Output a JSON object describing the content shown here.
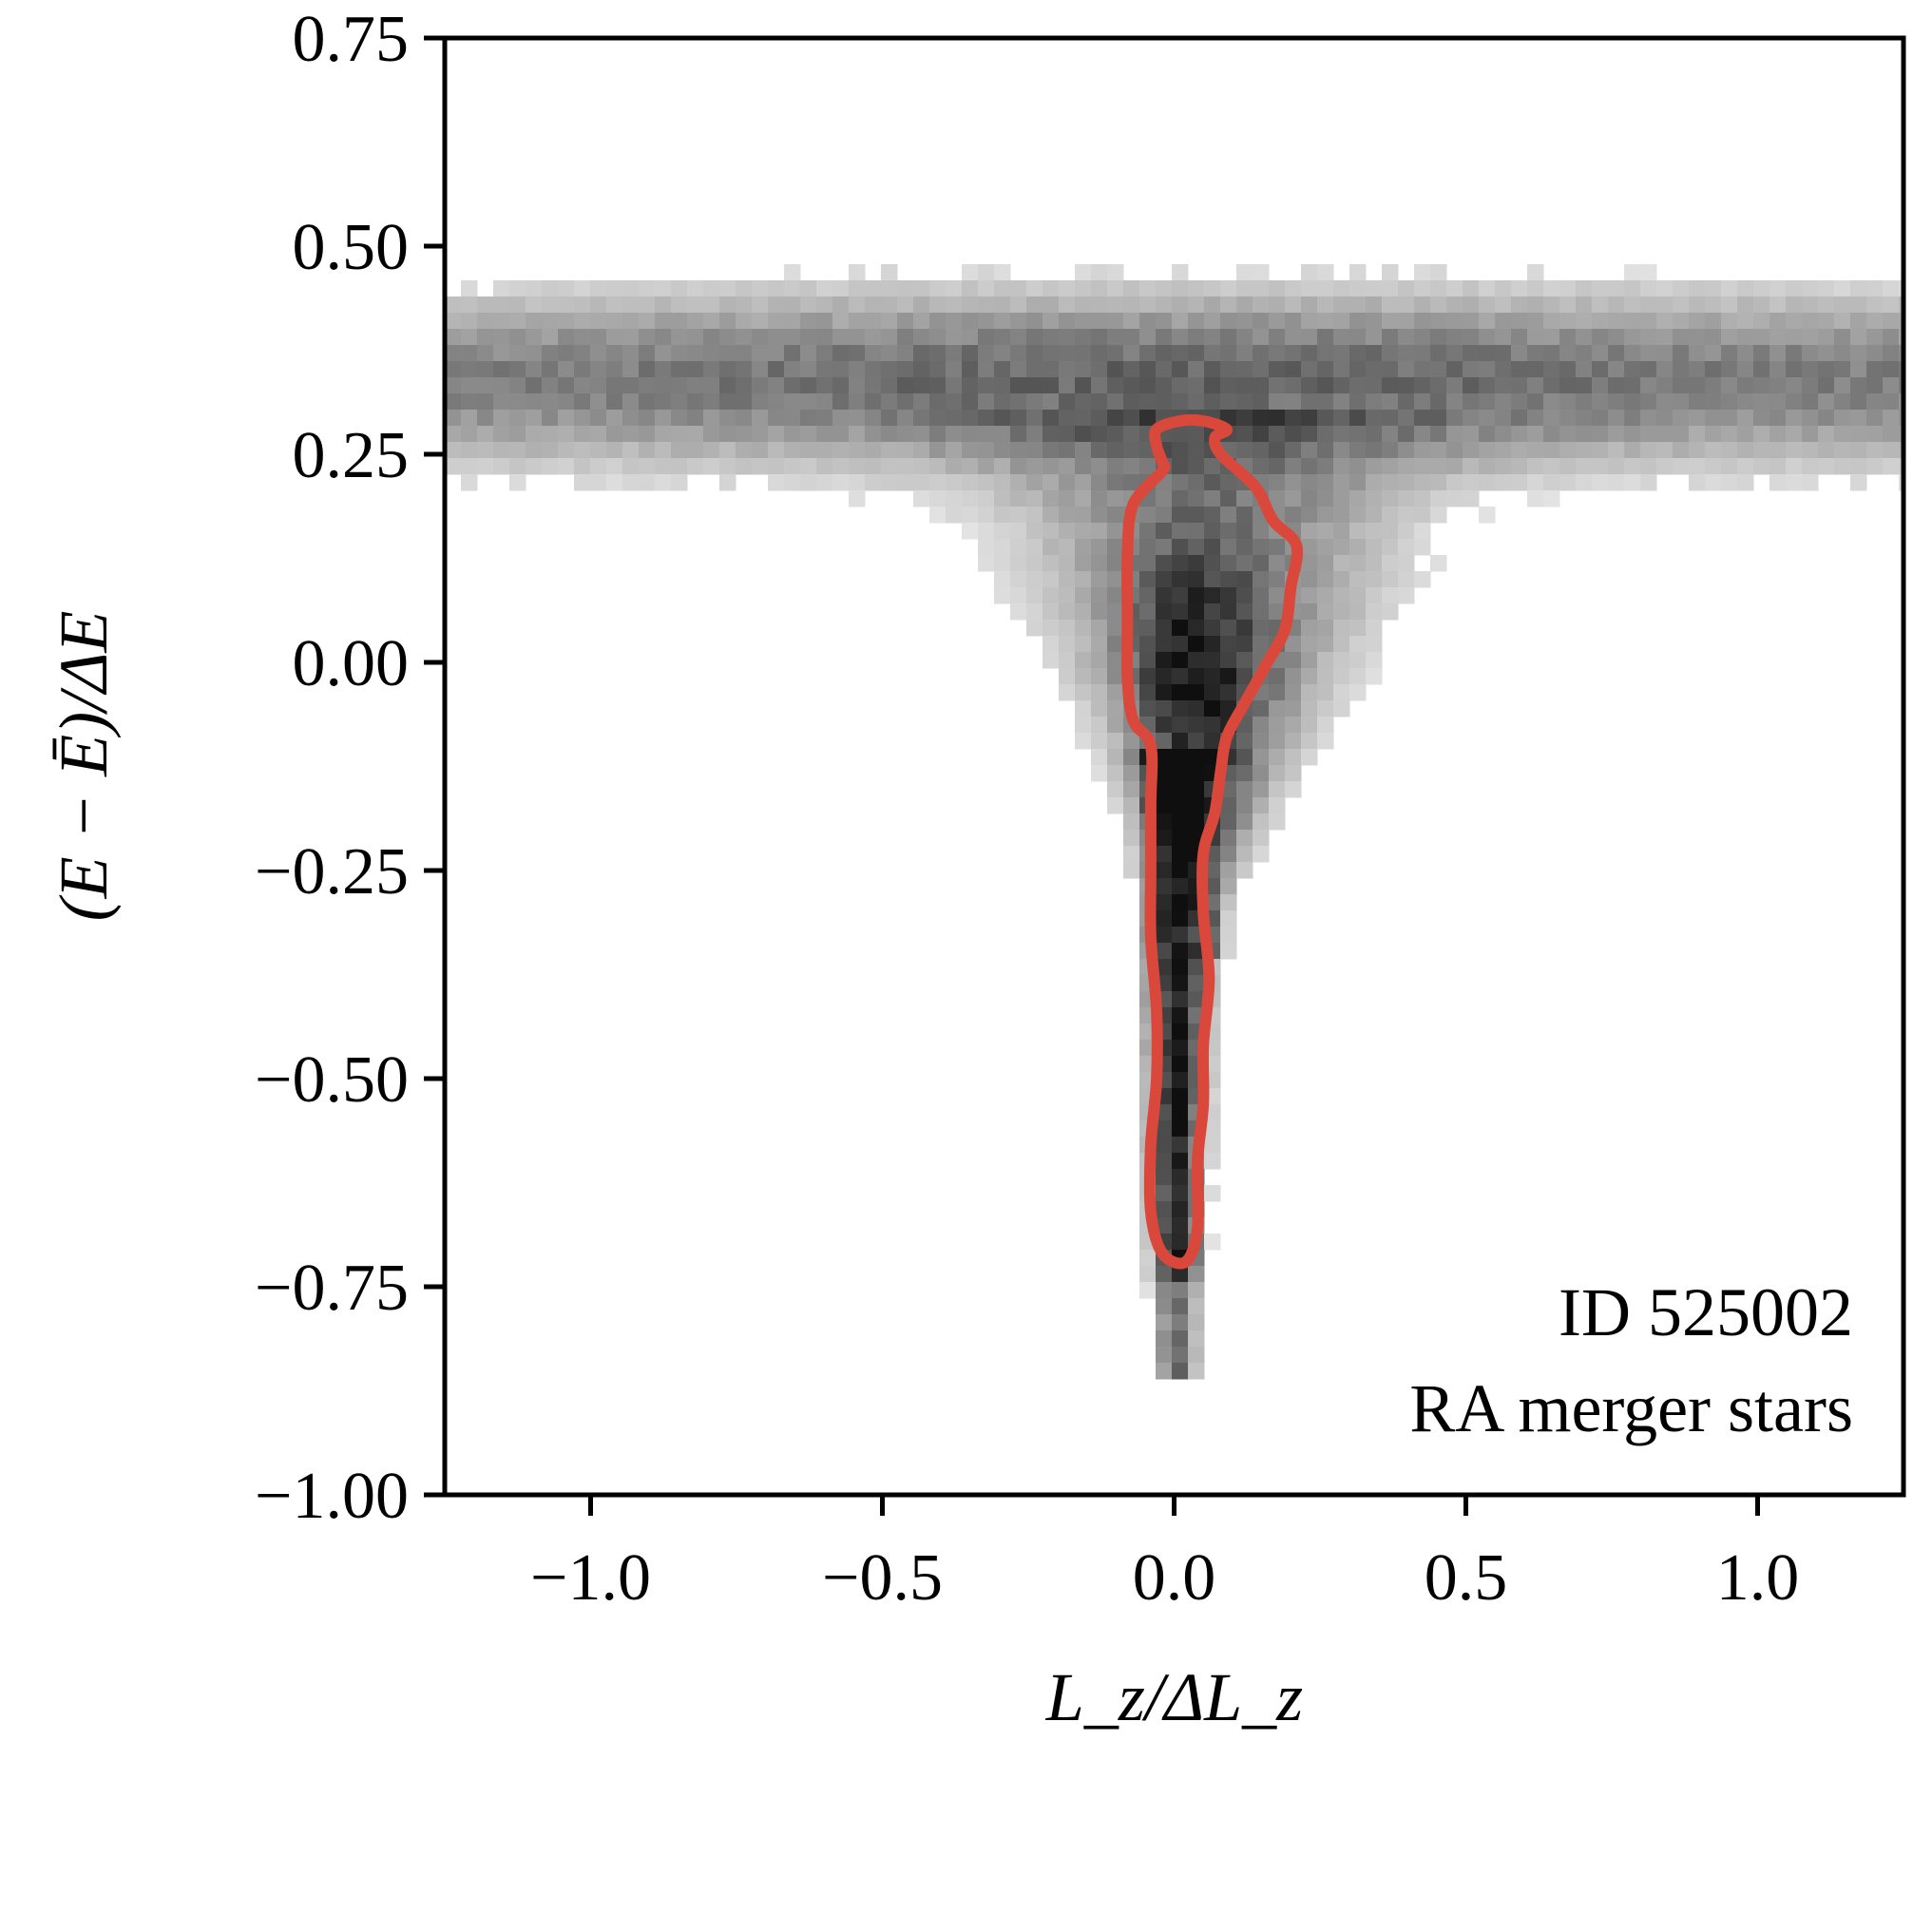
{
  "chart_data": {
    "type": "heatmap",
    "title": "",
    "xlabel": "L_z/ΔL_z",
    "ylabel": "(E − Ē)/ΔE",
    "xlim": [
      -1.25,
      1.25
    ],
    "ylim": [
      -1.0,
      0.75
    ],
    "xticks": [
      -1.0,
      -0.5,
      0.0,
      0.5,
      1.0
    ],
    "xtick_labels": [
      "−1.0",
      "−0.5",
      "0.0",
      "0.5",
      "1.0"
    ],
    "yticks": [
      0.75,
      0.5,
      0.25,
      0.0,
      -0.25,
      -0.5,
      -0.75,
      -1.0
    ],
    "ytick_labels": [
      "0.75",
      "0.50",
      "0.25",
      "0.00",
      "−0.25",
      "−0.50",
      "−0.75",
      "−1.00"
    ],
    "grid": false,
    "colormap": "greys",
    "contour_color": "#d9483b",
    "annotations": [
      "ID 525002",
      "RA merger stars"
    ],
    "annotation_position": "bottom-right",
    "density_description": "2D histogram: broad horizontal band at E≈0.25–0.50 spanning all Lz, funnelling into a narrow vertical spine at Lz≈0 extending to E≈−0.85",
    "contour": {
      "label": "",
      "points": [
        [
          -0.03,
          0.28
        ],
        [
          0.01,
          0.29
        ],
        [
          0.05,
          0.29
        ],
        [
          0.09,
          0.28
        ],
        [
          0.07,
          0.27
        ],
        [
          0.08,
          0.25
        ],
        [
          0.14,
          0.21
        ],
        [
          0.17,
          0.17
        ],
        [
          0.21,
          0.14
        ],
        [
          0.2,
          0.09
        ],
        [
          0.19,
          0.04
        ],
        [
          0.16,
          0.0
        ],
        [
          0.12,
          -0.05
        ],
        [
          0.09,
          -0.09
        ],
        [
          0.08,
          -0.13
        ],
        [
          0.07,
          -0.18
        ],
        [
          0.05,
          -0.23
        ],
        [
          0.05,
          -0.3
        ],
        [
          0.06,
          -0.38
        ],
        [
          0.05,
          -0.46
        ],
        [
          0.05,
          -0.53
        ],
        [
          0.04,
          -0.6
        ],
        [
          0.04,
          -0.68
        ],
        [
          0.02,
          -0.72
        ],
        [
          -0.02,
          -0.71
        ],
        [
          -0.04,
          -0.66
        ],
        [
          -0.04,
          -0.58
        ],
        [
          -0.03,
          -0.5
        ],
        [
          -0.03,
          -0.42
        ],
        [
          -0.04,
          -0.33
        ],
        [
          -0.04,
          -0.25
        ],
        [
          -0.04,
          -0.17
        ],
        [
          -0.04,
          -0.1
        ],
        [
          -0.07,
          -0.07
        ],
        [
          -0.08,
          -0.02
        ],
        [
          -0.08,
          0.05
        ],
        [
          -0.08,
          0.13
        ],
        [
          -0.07,
          0.19
        ],
        [
          -0.02,
          0.23
        ],
        [
          -0.02,
          0.24
        ],
        [
          -0.03,
          0.26
        ]
      ]
    }
  }
}
